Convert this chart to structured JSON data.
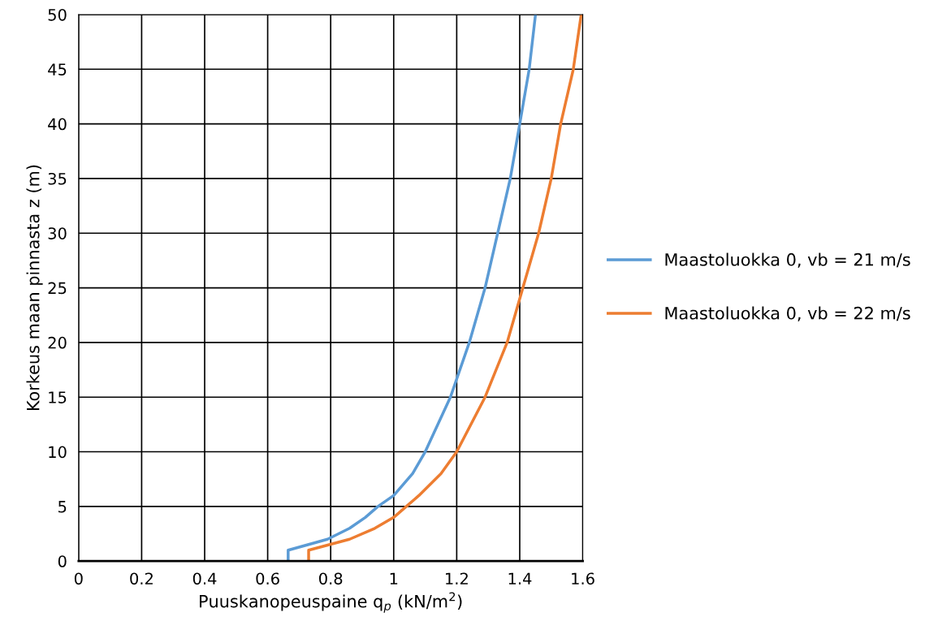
{
  "chart_data": {
    "type": "line",
    "xlabel": "Puuskanopeuspaine q$_{p}$ (kN/m$^{2}$)",
    "ylabel": "Korkeus maan pinnasta z (m)",
    "xlim": [
      0,
      1.6
    ],
    "xticks": [
      0,
      0.2,
      0.4,
      0.6,
      0.8,
      1,
      1.2,
      1.4,
      1.6
    ],
    "ylim": [
      0,
      50
    ],
    "yticks": [
      0,
      5,
      10,
      15,
      20,
      25,
      30,
      35,
      40,
      45,
      50
    ],
    "grid": true,
    "legend": "right",
    "marker": "none",
    "line_style": "solid",
    "series": [
      {
        "name": "Maastoluokka 0, vb = 21 m/s",
        "color": "#5b9bd5",
        "x": [
          0.665,
          0.665,
          0.79,
          0.86,
          0.91,
          0.95,
          1.0,
          1.06,
          1.1,
          1.18,
          1.24,
          1.29,
          1.33,
          1.37,
          1.4,
          1.43,
          1.45
        ],
        "values": [
          0,
          1,
          2,
          3,
          4,
          5,
          6,
          8,
          10,
          15,
          20,
          25,
          30,
          35,
          40,
          45,
          50
        ]
      },
      {
        "name": "Maastoluokka 0, vb = 22 m/s",
        "color": "#ed7d31",
        "x": [
          0.73,
          0.73,
          0.86,
          0.94,
          1.0,
          1.04,
          1.08,
          1.15,
          1.2,
          1.29,
          1.36,
          1.41,
          1.46,
          1.5,
          1.53,
          1.57,
          1.595
        ],
        "values": [
          0,
          1,
          2,
          3,
          4,
          5,
          6,
          8,
          10,
          15,
          20,
          25,
          30,
          35,
          40,
          45,
          50
        ]
      }
    ]
  }
}
